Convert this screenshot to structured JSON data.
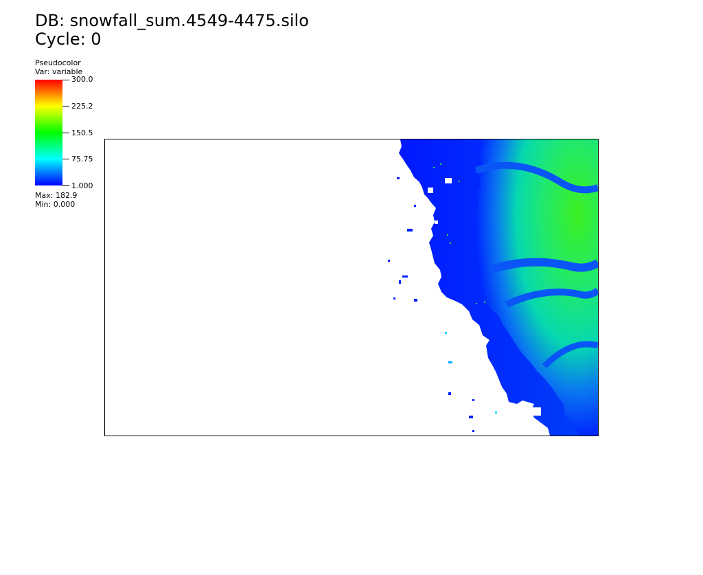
{
  "header": {
    "db_title": "DB: snowfall_sum.4549-4475.silo",
    "cycle": "Cycle: 0"
  },
  "legend": {
    "plot_type": "Pseudocolor",
    "variable": "Var: variable",
    "ticks": [
      "300.0",
      "225.2",
      "150.5",
      "75.75",
      "1.000"
    ],
    "max": "Max:  182.9",
    "min": "Min:  0.000",
    "colormap": [
      "#0000ff",
      "#00ffff",
      "#00ff00",
      "#ffff00",
      "#ff0000"
    ]
  }
}
